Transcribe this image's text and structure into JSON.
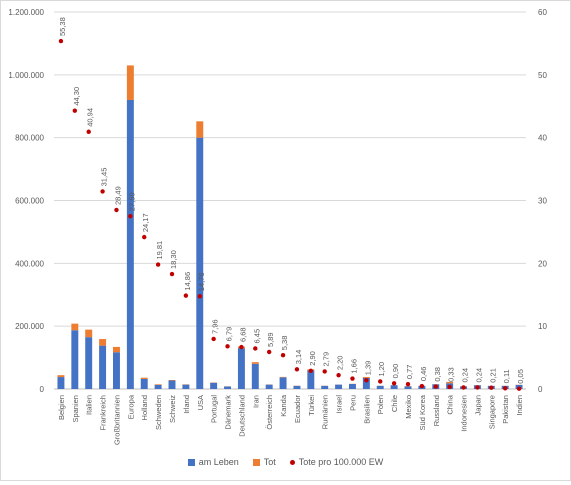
{
  "chart_data": {
    "type": "bar",
    "stacked": true,
    "title": "",
    "categories": [
      "Belgien",
      "Spanien",
      "Italien",
      "Frankreich",
      "Großbritannien",
      "Europa",
      "Holland",
      "Schweden",
      "Schweiz",
      "Irland",
      "USA",
      "Portugal",
      "Dänemark",
      "Deutschland",
      "Iran",
      "Österreich",
      "Kanda",
      "Ecuador",
      "Türkei",
      "Rumänien",
      "Israel",
      "Peru",
      "Brasilien",
      "Polen",
      "Chile",
      "Mexiko",
      "Süd Korea",
      "Russland",
      "China",
      "Indonesien",
      "Japan",
      "Singapore",
      "Pakistan",
      "Indien"
    ],
    "series": [
      {
        "name": "am Leben",
        "axis": "left",
        "color": "#4472c4",
        "values": [
          38000,
          187000,
          165000,
          138000,
          117000,
          920000,
          32000,
          13000,
          27000,
          14000,
          800000,
          20000,
          8000,
          130000,
          80000,
          14000,
          37000,
          10000,
          60000,
          10000,
          14000,
          16000,
          35000,
          10000,
          12000,
          8000,
          10000,
          15000,
          18000,
          8000,
          12000,
          10000,
          10000,
          13000
        ]
      },
      {
        "name": "Tot",
        "axis": "left",
        "color": "#ed7d31",
        "values": [
          6000,
          21000,
          24000,
          21000,
          17000,
          110000,
          4000,
          2000,
          1600,
          800,
          52000,
          800,
          400,
          5000,
          5500,
          550,
          1500,
          550,
          2400,
          500,
          200,
          600,
          3000,
          450,
          200,
          1100,
          240,
          500,
          4600,
          600,
          400,
          20,
          300,
          500
        ]
      },
      {
        "name": "Tote pro 100.000 EW",
        "axis": "right",
        "type": "scatter",
        "color": "#c00000",
        "values": [
          55.38,
          44.3,
          40.94,
          31.45,
          28.49,
          27.5,
          24.17,
          19.81,
          18.3,
          14.86,
          14.76,
          7.96,
          6.79,
          6.68,
          6.45,
          5.89,
          5.38,
          3.14,
          2.9,
          2.79,
          2.2,
          1.66,
          1.39,
          1.2,
          0.9,
          0.77,
          0.46,
          0.38,
          0.33,
          0.24,
          0.24,
          0.21,
          0.11,
          0.05
        ],
        "labels": [
          "55,38",
          "44,30",
          "40,94",
          "31,45",
          "28,49",
          "27,50",
          "24,17",
          "19,81",
          "18,30",
          "14,86",
          "14,76",
          "7,96",
          "6,79",
          "6,68",
          "6,45",
          "5,89",
          "5,38",
          "3,14",
          "2,90",
          "2,79",
          "2,20",
          "1,66",
          "1,39",
          "1,20",
          "0,90",
          "0,77",
          "0,46",
          "0,38",
          "0,33",
          "0,24",
          "0,24",
          "0,21",
          "0,11",
          "0,05"
        ]
      }
    ],
    "ylim_left": [
      0,
      1200000
    ],
    "ylim_right": [
      0,
      60
    ],
    "yticks_left": [
      "0",
      "200.000",
      "400.000",
      "600.000",
      "800.000",
      "1.000.000",
      "1.200.000"
    ],
    "yticks_right": [
      "0",
      "10",
      "20",
      "30",
      "40",
      "50",
      "60"
    ],
    "grid": true,
    "legend_position": "bottom"
  },
  "legend": {
    "alive_label": "am Leben",
    "dead_label": "Tot",
    "rate_label": "Tote pro 100.000 EW"
  }
}
